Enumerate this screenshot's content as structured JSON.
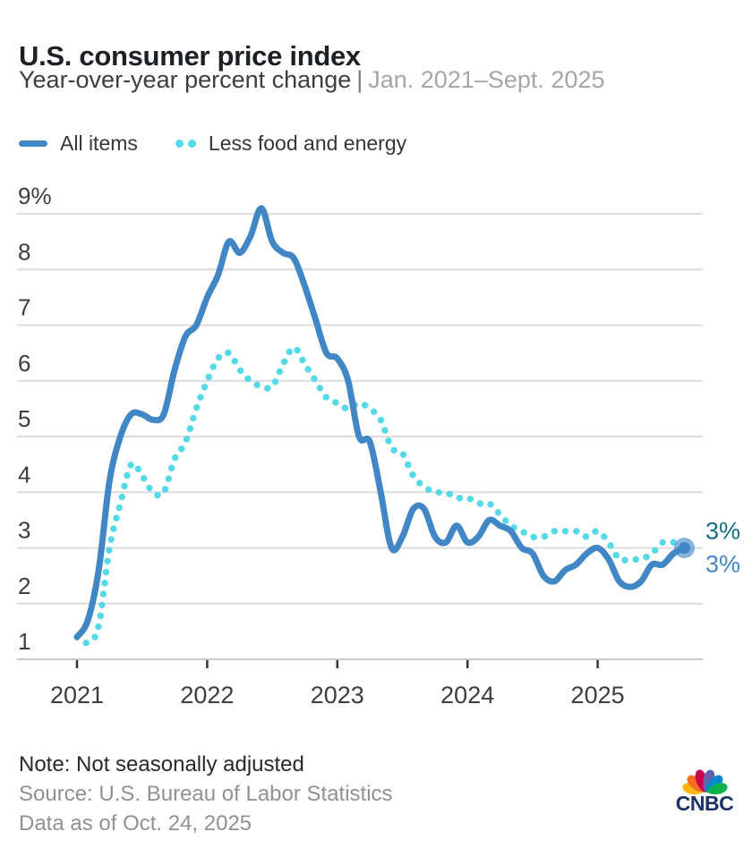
{
  "header": {
    "title": "U.S. consumer price index",
    "subtitle": "Year-over-year percent change",
    "subtitle_separator": "|",
    "subtitle_range": "Jan. 2021–Sept. 2025"
  },
  "legend": [
    {
      "label": "All items",
      "color": "#4187C6",
      "style": "solid"
    },
    {
      "label": "Less food and energy",
      "color": "#56D9E6",
      "style": "dotted"
    }
  ],
  "chart_data": {
    "type": "line",
    "title": "U.S. consumer price index",
    "xlabel": "",
    "ylabel": "",
    "x_unit": "month",
    "x_range": [
      "Jan. 2021",
      "Sept. 2025"
    ],
    "ylim": [
      1,
      9
    ],
    "grid": true,
    "legend_position": "top-left",
    "yticks": [
      {
        "value": 9,
        "label": "9%"
      },
      {
        "value": 8,
        "label": "8"
      },
      {
        "value": 7,
        "label": "7"
      },
      {
        "value": 6,
        "label": "6"
      },
      {
        "value": 5,
        "label": "5"
      },
      {
        "value": 4,
        "label": "4"
      },
      {
        "value": 3,
        "label": "3"
      },
      {
        "value": 2,
        "label": "2"
      },
      {
        "value": 1,
        "label": "1"
      }
    ],
    "xticks": [
      "2021",
      "2022",
      "2023",
      "2024",
      "2025"
    ],
    "series": [
      {
        "name": "Less food and energy",
        "color": "#56D9E6",
        "style": "dotted",
        "end_label": "3%",
        "end_label_color": "#156F82",
        "values": [
          1.4,
          1.3,
          1.6,
          3.0,
          3.8,
          4.5,
          4.3,
          4.0,
          4.0,
          4.6,
          4.9,
          5.5,
          6.0,
          6.4,
          6.5,
          6.2,
          6.0,
          5.9,
          5.9,
          6.3,
          6.6,
          6.3,
          6.0,
          5.7,
          5.6,
          5.5,
          5.6,
          5.5,
          5.3,
          4.8,
          4.7,
          4.3,
          4.1,
          4.0,
          4.0,
          3.9,
          3.9,
          3.8,
          3.8,
          3.6,
          3.4,
          3.3,
          3.2,
          3.2,
          3.3,
          3.3,
          3.3,
          3.2,
          3.3,
          3.1,
          2.8,
          2.8,
          2.8,
          2.9,
          3.1,
          3.1,
          3.0
        ]
      },
      {
        "name": "All items",
        "color": "#4187C6",
        "style": "solid",
        "end_label": "3%",
        "end_label_color": "#4187C6",
        "end_dot": true,
        "values": [
          1.4,
          1.7,
          2.6,
          4.2,
          5.0,
          5.4,
          5.4,
          5.3,
          5.4,
          6.2,
          6.8,
          7.0,
          7.5,
          7.9,
          8.5,
          8.3,
          8.6,
          9.1,
          8.5,
          8.3,
          8.2,
          7.7,
          7.1,
          6.5,
          6.4,
          6.0,
          5.0,
          4.9,
          4.0,
          3.0,
          3.2,
          3.7,
          3.7,
          3.2,
          3.1,
          3.4,
          3.1,
          3.2,
          3.5,
          3.4,
          3.3,
          3.0,
          2.9,
          2.5,
          2.4,
          2.6,
          2.7,
          2.9,
          3.0,
          2.8,
          2.4,
          2.3,
          2.4,
          2.7,
          2.7,
          2.9,
          3.0
        ]
      }
    ]
  },
  "footer": {
    "note": "Note: Not seasonally adjusted",
    "source": "Source: U.S. Bureau of Labor Statistics",
    "as_of": "Data as of Oct. 24, 2025"
  },
  "logo": {
    "name": "CNBC",
    "wordmark": "CNBC",
    "wordmark_color": "#1C3167",
    "peacock_colors": [
      "#FCB711",
      "#F37021",
      "#CC004C",
      "#6460AA",
      "#0089D0",
      "#0DB14B"
    ]
  }
}
